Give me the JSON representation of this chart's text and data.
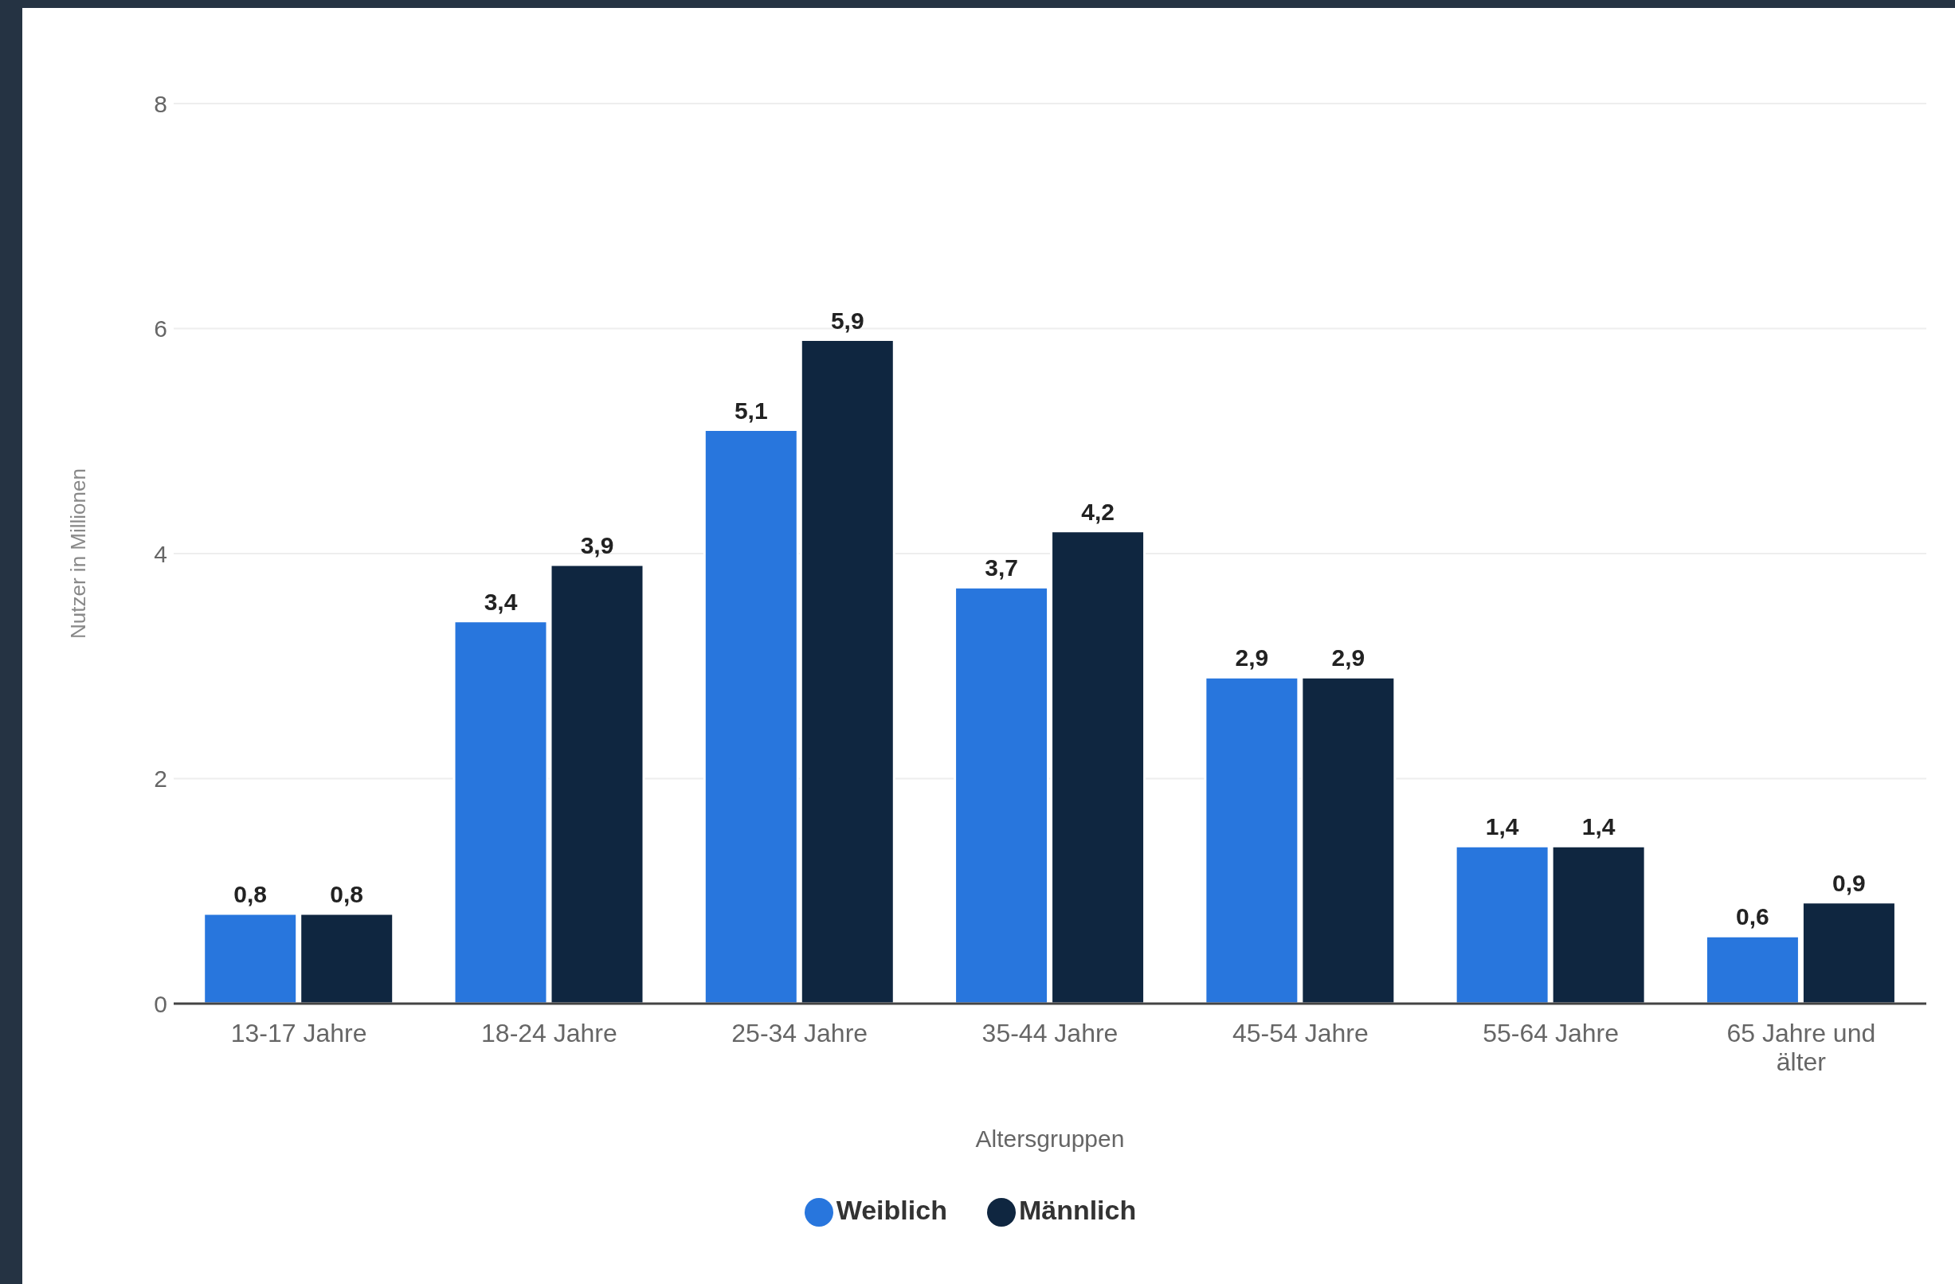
{
  "chart_data": {
    "type": "bar",
    "xlabel": "Altersgruppen",
    "ylabel": "Nutzer in Millionen",
    "categories": [
      "13-17 Jahre",
      "18-24 Jahre",
      "25-34 Jahre",
      "35-44 Jahre",
      "45-54 Jahre",
      "55-64 Jahre",
      "65 Jahre und älter"
    ],
    "series": [
      {
        "name": "Weiblich",
        "color": "#2876dd",
        "values": [
          0.8,
          3.4,
          5.1,
          3.7,
          2.9,
          1.4,
          0.6
        ],
        "value_labels": [
          "0,8",
          "3,4",
          "5,1",
          "3,7",
          "2,9",
          "1,4",
          "0,6"
        ]
      },
      {
        "name": "Männlich",
        "color": "#0f2640",
        "values": [
          0.8,
          3.9,
          5.9,
          4.2,
          2.9,
          1.4,
          0.9
        ],
        "value_labels": [
          "0,8",
          "3,9",
          "5,9",
          "4,2",
          "2,9",
          "1,4",
          "0,9"
        ]
      }
    ],
    "ylim": [
      0,
      8
    ],
    "yticks": [
      0,
      2,
      4,
      6,
      8
    ],
    "grid": "y",
    "legend": "bottom"
  }
}
